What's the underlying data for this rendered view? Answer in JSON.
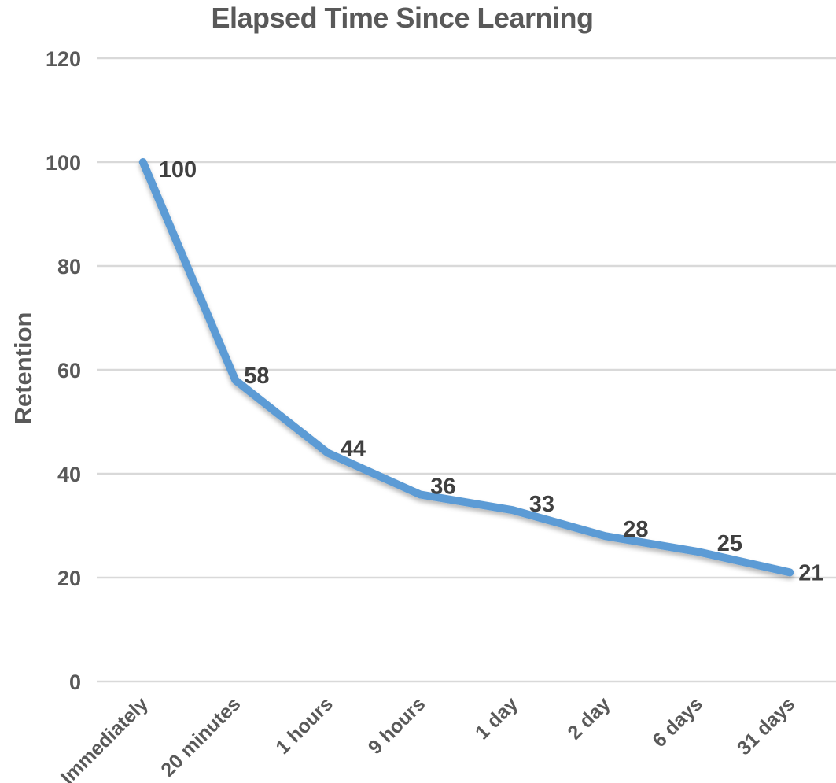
{
  "chart_data": {
    "type": "line",
    "title": "Elapsed Time Since Learning",
    "xlabel": "",
    "ylabel": "Retention",
    "categories": [
      "Immediately",
      "20 minutes",
      "1 hours",
      "9 hours",
      "1 day",
      "2 day",
      "6 days",
      "31 days"
    ],
    "series": [
      {
        "name": "Retention",
        "values": [
          100,
          58,
          44,
          36,
          33,
          28,
          25,
          21
        ]
      }
    ],
    "data_labels": [
      "100",
      "58",
      "44",
      "36",
      "33",
      "28",
      "25",
      "21"
    ],
    "yticks": [
      0,
      20,
      40,
      60,
      80,
      100,
      120
    ],
    "ylim": [
      0,
      120
    ],
    "grid": true,
    "legend_position": "none",
    "colors": {
      "line": "#5B9BD5",
      "gridline": "#D9D9D9",
      "axis_text": "#595959",
      "data_label": "#404040",
      "title_text": "#595959"
    }
  }
}
